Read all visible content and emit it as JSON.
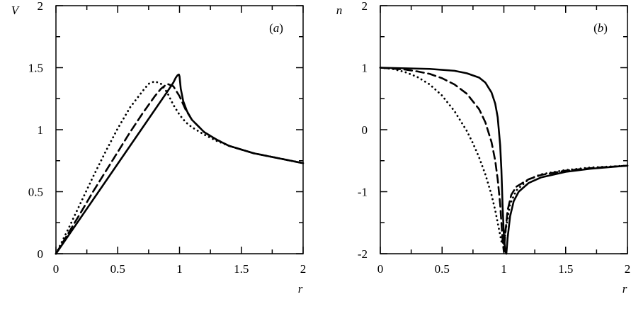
{
  "chart_data": [
    {
      "type": "line",
      "panel_label": "(a)",
      "xlabel": "r",
      "ylabel": "V",
      "xlim": [
        0,
        2
      ],
      "ylim": [
        0,
        2
      ],
      "xticks": [
        "0",
        "0.5",
        "1",
        "1.5",
        "2"
      ],
      "yticks": [
        "0",
        "0.5",
        "1",
        "1.5",
        "2"
      ],
      "grid": false,
      "series": [
        {
          "style": "solid",
          "x": [
            0,
            0.1,
            0.2,
            0.3,
            0.4,
            0.5,
            0.6,
            0.7,
            0.8,
            0.9,
            0.95,
            0.97,
            0.985,
            0.995,
            1.0,
            1.01,
            1.03,
            1.06,
            1.1,
            1.2,
            1.3,
            1.4,
            1.5,
            1.6,
            1.7,
            1.8,
            1.9,
            2.0
          ],
          "y": [
            0,
            0.145,
            0.29,
            0.435,
            0.58,
            0.725,
            0.87,
            1.015,
            1.16,
            1.305,
            1.38,
            1.42,
            1.44,
            1.445,
            1.43,
            1.33,
            1.23,
            1.15,
            1.08,
            0.98,
            0.92,
            0.87,
            0.84,
            0.81,
            0.79,
            0.77,
            0.75,
            0.73
          ]
        },
        {
          "style": "dashed",
          "x": [
            0,
            0.1,
            0.2,
            0.3,
            0.4,
            0.5,
            0.6,
            0.7,
            0.8,
            0.85,
            0.9,
            0.95,
            1.0,
            1.05,
            1.1,
            1.2,
            1.3,
            1.4,
            1.5,
            1.6,
            1.7,
            1.8,
            1.9,
            2.0
          ],
          "y": [
            0,
            0.165,
            0.33,
            0.5,
            0.66,
            0.82,
            0.98,
            1.13,
            1.27,
            1.33,
            1.37,
            1.35,
            1.27,
            1.16,
            1.08,
            0.98,
            0.92,
            0.87,
            0.84,
            0.81,
            0.79,
            0.77,
            0.75,
            0.73
          ]
        },
        {
          "style": "dotted",
          "x": [
            0,
            0.1,
            0.2,
            0.3,
            0.4,
            0.5,
            0.6,
            0.7,
            0.75,
            0.8,
            0.85,
            0.9,
            0.95,
            1.0,
            1.05,
            1.1,
            1.2,
            1.3,
            1.4,
            1.5,
            1.6,
            1.7,
            1.8,
            1.9,
            2.0
          ],
          "y": [
            0,
            0.2,
            0.41,
            0.62,
            0.82,
            1.01,
            1.18,
            1.31,
            1.37,
            1.39,
            1.37,
            1.3,
            1.2,
            1.12,
            1.06,
            1.02,
            0.96,
            0.91,
            0.87,
            0.84,
            0.81,
            0.79,
            0.77,
            0.75,
            0.73
          ]
        }
      ]
    },
    {
      "type": "line",
      "panel_label": "(b)",
      "xlabel": "r",
      "ylabel": "n",
      "xlim": [
        0,
        2
      ],
      "ylim": [
        -2,
        2
      ],
      "xticks": [
        "0",
        "0.5",
        "1",
        "1.5",
        "2"
      ],
      "yticks": [
        "-2",
        "-1",
        "0",
        "1",
        "2"
      ],
      "grid": false,
      "series": [
        {
          "style": "solid",
          "x": [
            0,
            0.2,
            0.4,
            0.6,
            0.7,
            0.8,
            0.85,
            0.9,
            0.93,
            0.95,
            0.97,
            0.98,
            0.99,
            1.0,
            1.01,
            1.02,
            1.03,
            1.05,
            1.08,
            1.12,
            1.2,
            1.3,
            1.5,
            1.7,
            2.0
          ],
          "y": [
            1,
            0.99,
            0.98,
            0.95,
            0.91,
            0.84,
            0.76,
            0.6,
            0.42,
            0.2,
            -0.25,
            -0.65,
            -1.25,
            -1.7,
            -1.95,
            -2.0,
            -1.75,
            -1.4,
            -1.15,
            -1.0,
            -0.86,
            -0.77,
            -0.68,
            -0.63,
            -0.58
          ]
        },
        {
          "style": "dashed",
          "x": [
            0,
            0.2,
            0.3,
            0.4,
            0.5,
            0.6,
            0.7,
            0.8,
            0.85,
            0.9,
            0.93,
            0.95,
            0.97,
            0.98,
            0.99,
            1.0,
            1.01,
            1.03,
            1.06,
            1.1,
            1.2,
            1.3,
            1.5,
            1.7,
            2.0
          ],
          "y": [
            1,
            0.97,
            0.94,
            0.9,
            0.83,
            0.73,
            0.58,
            0.33,
            0.12,
            -0.2,
            -0.5,
            -0.8,
            -1.2,
            -1.5,
            -1.8,
            -1.97,
            -1.7,
            -1.3,
            -1.05,
            -0.92,
            -0.8,
            -0.73,
            -0.66,
            -0.62,
            -0.58
          ]
        },
        {
          "style": "dotted",
          "x": [
            0,
            0.1,
            0.2,
            0.3,
            0.4,
            0.5,
            0.6,
            0.7,
            0.75,
            0.8,
            0.85,
            0.9,
            0.93,
            0.96,
            0.98,
            1.0,
            1.02,
            1.05,
            1.1,
            1.2,
            1.3,
            1.5,
            1.7,
            2.0
          ],
          "y": [
            1,
            0.98,
            0.93,
            0.85,
            0.73,
            0.55,
            0.3,
            -0.02,
            -0.22,
            -0.45,
            -0.72,
            -1.05,
            -1.3,
            -1.6,
            -1.8,
            -1.85,
            -1.55,
            -1.2,
            -0.98,
            -0.8,
            -0.72,
            -0.65,
            -0.61,
            -0.58
          ]
        }
      ]
    }
  ]
}
